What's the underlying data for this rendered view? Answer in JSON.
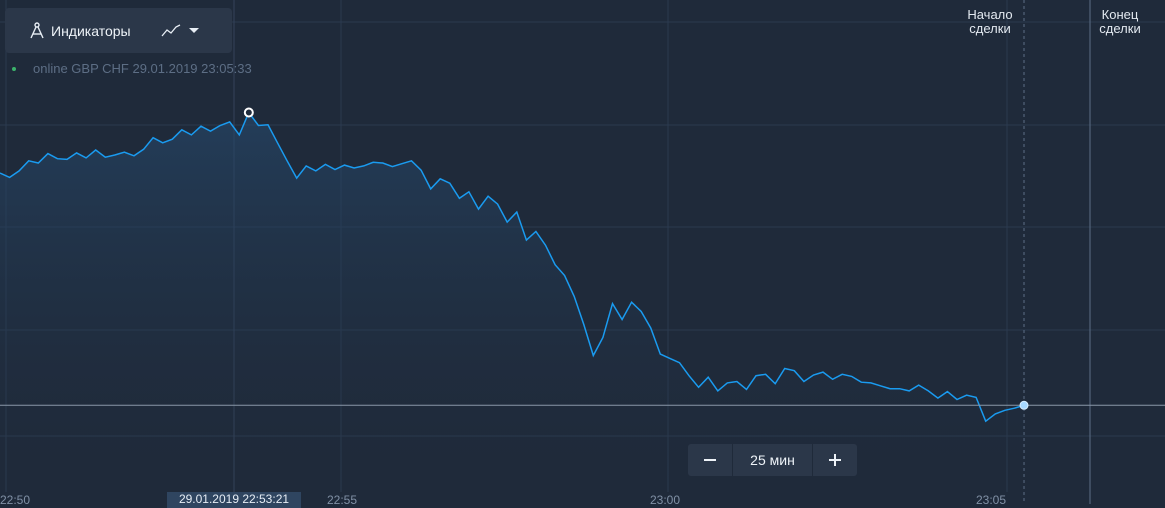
{
  "toolbar": {
    "indicators_label": "Индикаторы",
    "indicators_icon": "compass-icon",
    "chart_type_icon": "line-chart-icon",
    "dropdown_icon": "caret-down-icon"
  },
  "asset": {
    "status_color": "#3bb26b",
    "text": "online GBP CHF 29.01.2019 23:05:33"
  },
  "deal_markers": {
    "start_line1": "Начало",
    "start_line2": "сделки",
    "end_line1": "Конец",
    "end_line2": "сделки"
  },
  "zoom": {
    "minus_icon": "minus-icon",
    "value": "25 мин",
    "plus_icon": "plus-icon"
  },
  "time_axis": {
    "ticks": [
      "22:50",
      "22:55",
      "23:00",
      "23:05"
    ],
    "crosshair_time": "29.01.2019 22:53:21"
  },
  "colors": {
    "background": "#1f2a3a",
    "line": "#1a9bf0",
    "panel": "#2b3749"
  },
  "chart_data": {
    "type": "area",
    "title": "",
    "xlabel": "",
    "ylabel": "",
    "ylim": [
      0,
      10
    ],
    "series": [
      {
        "values": [
          3.24,
          3.18,
          3.27,
          3.41,
          3.38,
          3.51,
          3.44,
          3.43,
          3.52,
          3.45,
          3.56,
          3.46,
          3.49,
          3.53,
          3.48,
          3.57,
          3.73,
          3.66,
          3.71,
          3.84,
          3.77,
          3.89,
          3.82,
          3.9,
          3.95,
          3.77,
          4.08,
          3.9,
          3.91,
          3.66,
          3.41,
          3.17,
          3.34,
          3.27,
          3.36,
          3.29,
          3.35,
          3.31,
          3.34,
          3.39,
          3.38,
          3.33,
          3.37,
          3.41,
          3.28,
          3.02,
          3.16,
          3.1,
          2.89,
          2.98,
          2.74,
          2.92,
          2.81,
          2.56,
          2.7,
          2.31,
          2.43,
          2.24,
          1.97,
          1.82,
          1.53,
          1.14,
          0.71,
          0.96,
          1.43,
          1.21,
          1.45,
          1.32,
          1.09,
          0.73,
          0.67,
          0.61,
          0.43,
          0.27,
          0.41,
          0.22,
          0.33,
          0.35,
          0.24,
          0.43,
          0.45,
          0.32,
          0.53,
          0.5,
          0.35,
          0.44,
          0.48,
          0.38,
          0.45,
          0.42,
          0.34,
          0.33,
          0.29,
          0.25,
          0.25,
          0.22,
          0.3,
          0.22,
          0.12,
          0.21,
          0.1,
          0.16,
          0.13,
          -0.2,
          -0.1,
          -0.05,
          -0.02,
          0.02
        ]
      }
    ],
    "crosshair_index": 26,
    "current_index": 107
  }
}
